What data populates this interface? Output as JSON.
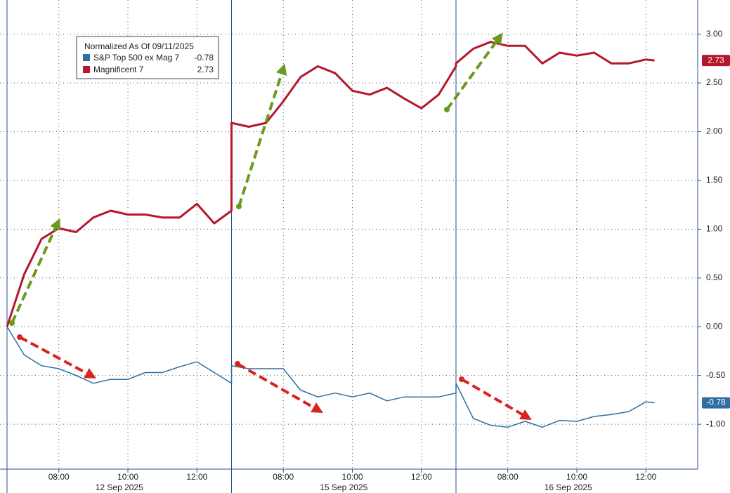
{
  "chart_data": {
    "type": "line",
    "legend_title": "Normalized As Of 09/11/2025",
    "xlim": [
      "06:30",
      "13:00"
    ],
    "sessions": [
      {
        "date": "12 Sep 2025",
        "xticks": [
          "08:00",
          "10:00",
          "12:00"
        ]
      },
      {
        "date": "15 Sep 2025",
        "xticks": [
          "08:00",
          "10:00",
          "12:00"
        ]
      },
      {
        "date": "16 Sep 2025",
        "xticks": [
          "08:00",
          "10:00",
          "12:00"
        ]
      }
    ],
    "x": [
      "12 Sep 2025 06:30",
      "12 Sep 2025 07:00",
      "12 Sep 2025 07:30",
      "12 Sep 2025 08:00",
      "12 Sep 2025 08:30",
      "12 Sep 2025 09:00",
      "12 Sep 2025 09:30",
      "12 Sep 2025 10:00",
      "12 Sep 2025 10:30",
      "12 Sep 2025 11:00",
      "12 Sep 2025 11:30",
      "12 Sep 2025 12:00",
      "12 Sep 2025 12:30",
      "12 Sep 2025 13:00",
      "15 Sep 2025 06:30",
      "15 Sep 2025 07:00",
      "15 Sep 2025 07:30",
      "15 Sep 2025 08:00",
      "15 Sep 2025 08:30",
      "15 Sep 2025 09:00",
      "15 Sep 2025 09:30",
      "15 Sep 2025 10:00",
      "15 Sep 2025 10:30",
      "15 Sep 2025 11:00",
      "15 Sep 2025 11:30",
      "15 Sep 2025 12:00",
      "15 Sep 2025 12:30",
      "15 Sep 2025 13:00",
      "16 Sep 2025 06:30",
      "16 Sep 2025 07:00",
      "16 Sep 2025 07:30",
      "16 Sep 2025 08:00",
      "16 Sep 2025 08:30",
      "16 Sep 2025 09:00",
      "16 Sep 2025 09:30",
      "16 Sep 2025 10:00",
      "16 Sep 2025 10:30",
      "16 Sep 2025 11:00",
      "16 Sep 2025 11:30",
      "16 Sep 2025 12:00",
      "16 Sep 2025 12:15"
    ],
    "series": [
      {
        "name": "S&P Top 500 ex Mag 7",
        "color": "#2f6e9f",
        "values": [
          0.0,
          -0.29,
          -0.4,
          -0.43,
          -0.5,
          -0.58,
          -0.54,
          -0.54,
          -0.47,
          -0.47,
          -0.41,
          -0.36,
          -0.47,
          -0.58,
          -0.4,
          -0.43,
          -0.43,
          -0.43,
          -0.65,
          -0.72,
          -0.68,
          -0.72,
          -0.68,
          -0.76,
          -0.72,
          -0.72,
          -0.72,
          -0.68,
          -0.58,
          -0.94,
          -1.01,
          -1.03,
          -0.97,
          -1.03,
          -0.96,
          -0.97,
          -0.92,
          -0.9,
          -0.87,
          -0.77,
          -0.78
        ]
      },
      {
        "name": "Magnificent 7",
        "color": "#b5172c",
        "values": [
          0.0,
          0.54,
          0.9,
          1.01,
          0.97,
          1.12,
          1.19,
          1.15,
          1.15,
          1.12,
          1.12,
          1.26,
          1.06,
          1.19,
          2.09,
          2.05,
          2.09,
          2.31,
          2.56,
          2.67,
          2.6,
          2.42,
          2.38,
          2.45,
          2.34,
          2.24,
          2.38,
          2.67,
          2.7,
          2.85,
          2.92,
          2.88,
          2.88,
          2.7,
          2.81,
          2.78,
          2.81,
          2.7,
          2.7,
          2.74,
          2.73
        ]
      }
    ],
    "ylim": [
      -1.46,
      3.35
    ],
    "yticks": [
      {
        "value": 3,
        "label": "3.00"
      },
      {
        "value": 2.5,
        "label": "2.50"
      },
      {
        "value": 2,
        "label": "2.00"
      },
      {
        "value": 1.5,
        "label": "1.50"
      },
      {
        "value": 1,
        "label": "1.00"
      },
      {
        "value": 0.5,
        "label": "0.50"
      },
      {
        "value": 0,
        "label": "0.00"
      },
      {
        "value": -0.5,
        "label": "-0.50"
      },
      {
        "value": -1,
        "label": "-1.00"
      }
    ],
    "grid": true
  }
}
